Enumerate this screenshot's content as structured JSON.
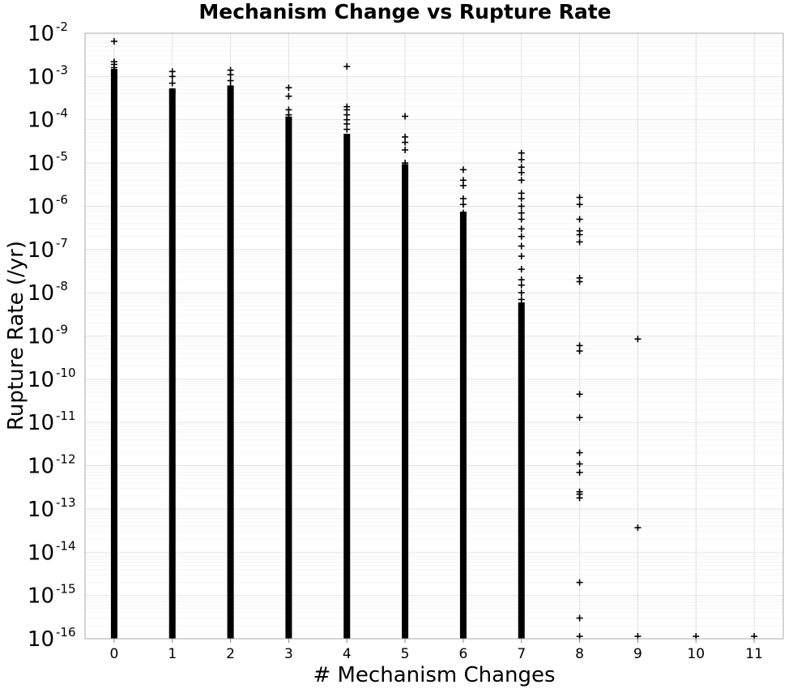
{
  "chart_data": {
    "type": "scatter",
    "title": "Mechanism Change vs Rupture Rate",
    "xlabel": "# Mechanism Changes",
    "ylabel": "Rupture Rate (/yr)",
    "xlim": [
      -0.5,
      11.5
    ],
    "ylim": [
      1e-16,
      0.01
    ],
    "y_scale": "log",
    "grid": true,
    "marker": "+",
    "marker_color": "#000000",
    "x_ticks": [
      "0",
      "1",
      "2",
      "3",
      "4",
      "5",
      "6",
      "7",
      "8",
      "9",
      "10",
      "11"
    ],
    "y_ticks": [
      {
        "base": "10",
        "exp": "-2"
      },
      {
        "base": "10",
        "exp": "-3"
      },
      {
        "base": "10",
        "exp": "-4"
      },
      {
        "base": "10",
        "exp": "-5"
      },
      {
        "base": "10",
        "exp": "-6"
      },
      {
        "base": "10",
        "exp": "-7"
      },
      {
        "base": "10",
        "exp": "-8"
      },
      {
        "base": "10",
        "exp": "-9"
      },
      {
        "base": "10",
        "exp": "-10"
      },
      {
        "base": "10",
        "exp": "-11"
      },
      {
        "base": "10",
        "exp": "-12"
      },
      {
        "base": "10",
        "exp": "-13"
      },
      {
        "base": "10",
        "exp": "-14"
      },
      {
        "base": "10",
        "exp": "-15"
      },
      {
        "base": "10",
        "exp": "-16"
      }
    ],
    "series": [
      {
        "x": 0,
        "dense_log10_range": [
          -16,
          -2.9
        ],
        "points": [
          0.0065,
          0.0022,
          0.0019,
          0.0016,
          0.0013,
          0.0011
        ]
      },
      {
        "x": 1,
        "dense_log10_range": [
          -16,
          -3.35
        ],
        "points": [
          0.0013,
          0.001,
          0.0007,
          0.00045
        ]
      },
      {
        "x": 2,
        "dense_log10_range": [
          -16,
          -3.3
        ],
        "points": [
          0.0014,
          0.0011,
          0.0008,
          0.0006,
          0.0004
        ]
      },
      {
        "x": 3,
        "dense_log10_range": [
          -16,
          -4.0
        ],
        "points": [
          0.00055,
          0.00035,
          0.00017,
          0.00013,
          0.0001
        ]
      },
      {
        "x": 4,
        "dense_log10_range": [
          -16,
          -4.4
        ],
        "points": [
          0.0017,
          0.0002,
          0.00017,
          0.00013,
          0.0001,
          8e-05,
          6e-05
        ]
      },
      {
        "x": 5,
        "dense_log10_range": [
          -16,
          -5.1
        ],
        "points": [
          0.00012,
          4e-05,
          3e-05,
          2e-05,
          1e-05
        ]
      },
      {
        "x": 6,
        "dense_log10_range": [
          -16,
          -6.2
        ],
        "points": [
          7e-06,
          4e-06,
          3e-06,
          1.5e-06,
          1.1e-06,
          7e-07,
          5e-07,
          3e-07,
          1.5e-07,
          8e-08,
          5e-08,
          3e-08,
          1.5e-08,
          1e-08,
          6e-09,
          4e-09,
          2.5e-09,
          1.5e-09
        ]
      },
      {
        "x": 7,
        "dense_log10_range": [
          -16,
          -8.3
        ],
        "points": [
          1.7e-05,
          1.2e-05,
          8e-06,
          6e-06,
          4e-06,
          2e-06,
          1.5e-06,
          1e-06,
          7e-07,
          5e-07,
          3e-07,
          2e-07,
          1.2e-07,
          7e-08,
          3.5e-08,
          2e-08,
          1.5e-08,
          1e-08,
          7e-09
        ]
      },
      {
        "x": 8,
        "dense_log10_range": null,
        "points": [
          1.6e-06,
          1.1e-06,
          5e-07,
          2.7e-07,
          2.2e-07,
          1.5e-07,
          2.2e-08,
          1.8e-08,
          6e-10,
          4.5e-10,
          4.5e-11,
          1.3e-11,
          2e-12,
          1.1e-12,
          7e-13,
          2.5e-13,
          2.2e-13,
          1.8e-13,
          2e-15,
          3e-16,
          1.05e-16
        ]
      },
      {
        "x": 9,
        "dense_log10_range": null,
        "points": [
          8.5e-10,
          3.7e-14,
          1.05e-16
        ]
      },
      {
        "x": 10,
        "dense_log10_range": null,
        "points": [
          1.05e-16
        ]
      },
      {
        "x": 11,
        "dense_log10_range": null,
        "points": [
          1.05e-16
        ]
      }
    ]
  }
}
